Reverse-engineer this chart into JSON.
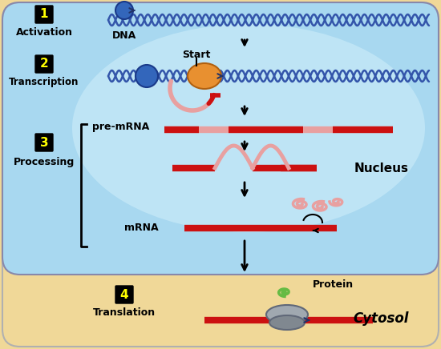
{
  "bg_outer": "#f0d898",
  "bg_nucleus": "#a8d8f0",
  "bg_nucleus_light": "#c8eaf8",
  "dna_color": "#3355aa",
  "mrna_color": "#cc1111",
  "mrna_light": "#e8a0a0",
  "orange_blob": "#e89030",
  "blue_blob": "#3366bb",
  "step_text_color": "#ffff00",
  "nucleus_label": "Nucleus",
  "cytosol_label": "Cytosol",
  "dna_label": "DNA",
  "start_label": "Start",
  "premrna_label": "pre-mRNA",
  "mrna_label": "mRNA",
  "protein_label": "Protein",
  "step1_label": "Activation",
  "step2_label": "Transcription",
  "step3_label": "Processing",
  "step4_label": "Translation",
  "intron_color": "#e8a0a0",
  "protein_green": "#66bb44",
  "ribosome_color": "#909090"
}
